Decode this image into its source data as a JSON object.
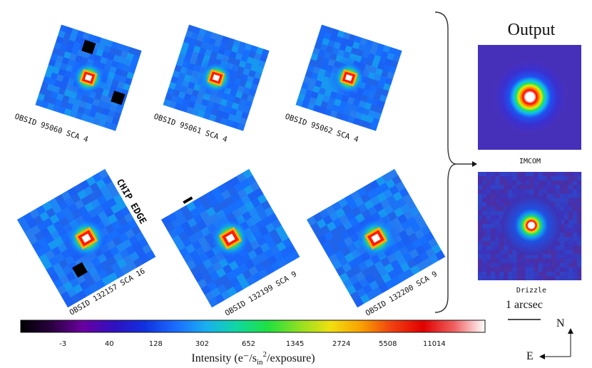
{
  "figure": {
    "output_title": "Output",
    "chip_edge_label": "CHIP EDGE",
    "scale_bar_label": "1 arcsec",
    "compass": {
      "north": "N",
      "east": "E"
    }
  },
  "panels": [
    {
      "obsid": "OBSID  95060 SCA  4"
    },
    {
      "obsid": "OBSID  95061 SCA  4"
    },
    {
      "obsid": "OBSID  95062 SCA  4"
    },
    {
      "obsid": "OBSID 132157 SCA 16"
    },
    {
      "obsid": "OBSID 132199 SCA  9"
    },
    {
      "obsid": "OBSID 132200 SCA  9"
    }
  ],
  "outputs": [
    {
      "label": "IMCOM"
    },
    {
      "label": "Drizzle"
    }
  ],
  "colorbar": {
    "title": "Intensity (e⁻/s",
    "title_sub": "in",
    "title_sup": "2",
    "title_end": "/exposure)",
    "ticks": [
      "-3",
      "40",
      "128",
      "302",
      "652",
      "1345",
      "2724",
      "5508",
      "11014"
    ],
    "stops": [
      "#000000",
      "#2a0040",
      "#6a00a0",
      "#3010c0",
      "#1030e0",
      "#1a6cff",
      "#18b0f0",
      "#10d8a0",
      "#20e040",
      "#90e020",
      "#f0e010",
      "#f8a000",
      "#f04010",
      "#e00000",
      "#f06060",
      "#ffffff"
    ]
  }
}
